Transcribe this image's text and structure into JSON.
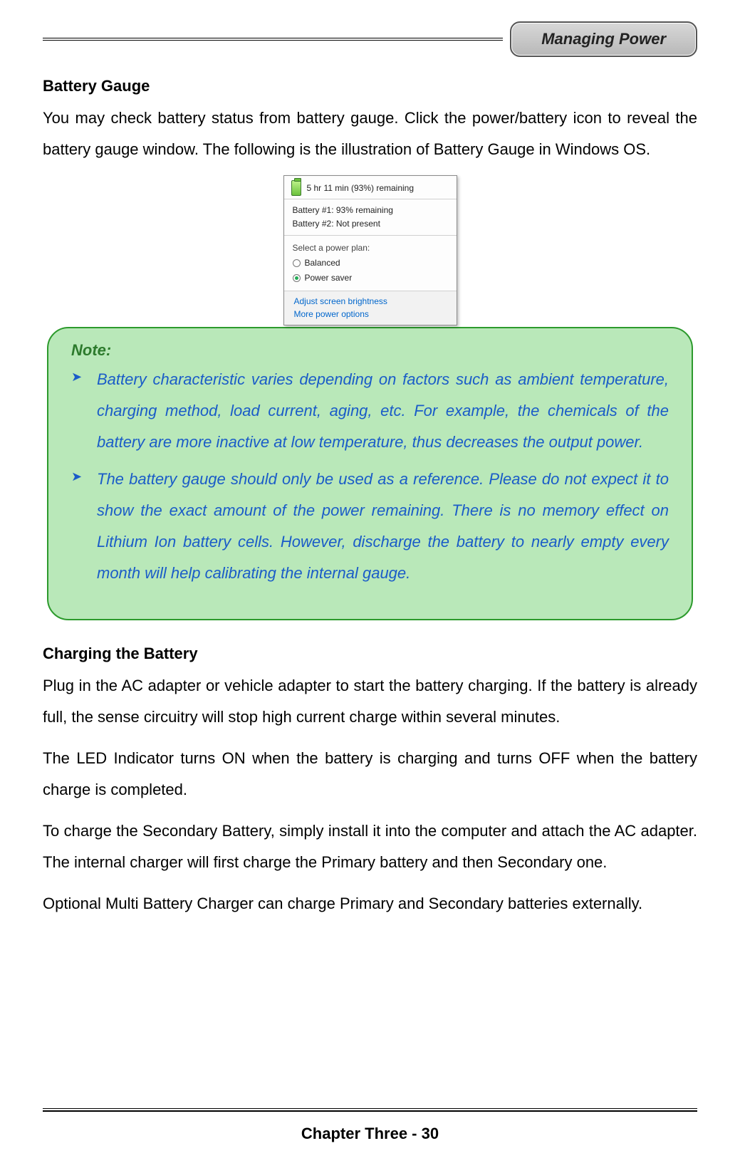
{
  "header": {
    "badge": "Managing Power"
  },
  "section1": {
    "heading": "Battery Gauge",
    "paragraph": "You may check battery status from battery gauge. Click the power/battery icon to reveal the battery gauge window. The following is the illustration of Battery Gauge in Windows OS."
  },
  "popup": {
    "top_text": "5 hr 11 min (93%) remaining",
    "battery1": "Battery #1: 93% remaining",
    "battery2": "Battery #2: Not present",
    "select_label": "Select a power plan:",
    "plan_balanced": "Balanced",
    "plan_saver": "Power saver",
    "link_brightness": "Adjust screen brightness",
    "link_more": "More power options",
    "colors": {
      "border": "#8a8a8a",
      "link": "#0066cc",
      "footer_bg": "#f2f2f2"
    }
  },
  "note": {
    "title": "Note:",
    "items": [
      "Battery characteristic varies depending on factors such as ambient temperature, charging method, load current, aging, etc. For example, the chemicals of the battery are more inactive at low temperature, thus decreases the output power.",
      "The battery gauge should only be used as a reference. Please do not expect it to show the exact amount of the power remaining. There is no memory effect on Lithium Ion battery cells. However, discharge the battery to nearly empty every month will help calibrating the internal gauge."
    ],
    "colors": {
      "background": "#b9e8b9",
      "border": "#2c9a2c",
      "title_color": "#2c7a2c",
      "text_color": "#1a5cc8"
    }
  },
  "section2": {
    "heading": "Charging the Battery",
    "p1": "Plug in the AC adapter or vehicle adapter to start the battery charging. If the battery is already full, the sense circuitry will stop high current charge within several minutes.",
    "p2": "The LED Indicator turns ON when the battery is charging and turns OFF when the battery charge is completed.",
    "p3": "To charge the Secondary Battery, simply install it into the computer and attach the AC adapter. The internal charger will first charge the Primary battery and then Secondary one.",
    "p4": "Optional Multi Battery Charger can charge Primary and Secondary batteries externally."
  },
  "footer": {
    "text": "Chapter Three - 30"
  }
}
